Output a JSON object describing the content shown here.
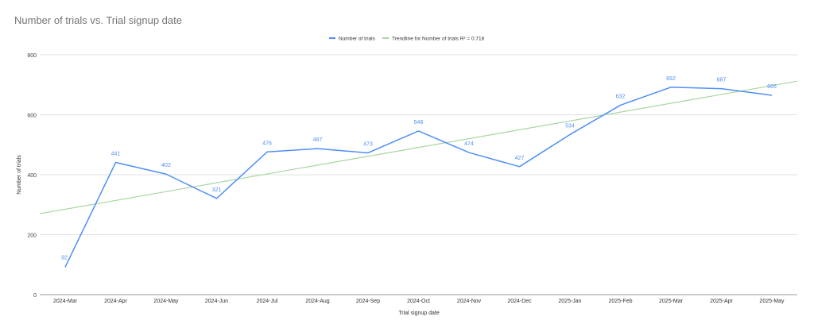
{
  "chart_data": {
    "type": "line",
    "title": "Number of trials vs. Trial signup date",
    "xlabel": "Trial signup date",
    "ylabel": "Number of trials",
    "categories": [
      "2024-Mar",
      "2024-Apr",
      "2024-May",
      "2024-Jun",
      "2024-Jul",
      "2024-Aug",
      "2024-Sep",
      "2024-Oct",
      "2024-Nov",
      "2024-Dec",
      "2025-Jan",
      "2025-Feb",
      "2025-Mar",
      "2025-Apr",
      "2025-May"
    ],
    "series": [
      {
        "name": "Number of trials",
        "color": "#4f8ef7",
        "values": [
          92,
          441,
          402,
          321,
          476,
          487,
          473,
          546,
          474,
          427,
          534,
          632,
          692,
          687,
          665
        ],
        "data_labels": true
      }
    ],
    "trendline": {
      "name": "Trendline for Number of trials R² = 0.718",
      "color": "#a8d5a2",
      "start_value": 270,
      "end_value": 712
    },
    "ylim": [
      0,
      800
    ],
    "yticks": [
      0,
      200,
      400,
      600,
      800
    ],
    "grid": true,
    "legend_position": "top"
  }
}
